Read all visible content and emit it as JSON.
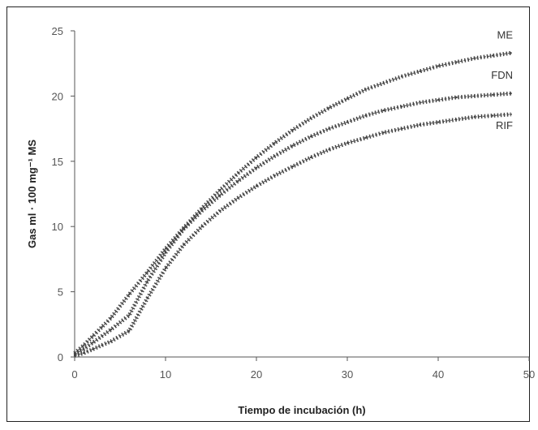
{
  "chart_data": {
    "type": "line",
    "title": "",
    "xlabel": "Tiempo de incubación (h)",
    "ylabel": "Gas ml · 100 mg⁻¹ MS",
    "xlim": [
      0,
      50
    ],
    "ylim": [
      0,
      25
    ],
    "x_ticks": [
      "0",
      "10",
      "20",
      "30",
      "40",
      "50"
    ],
    "y_ticks": [
      "0",
      "5",
      "10",
      "15",
      "20",
      "25"
    ],
    "grid": false,
    "legend": "inline-right",
    "series": [
      {
        "name": "ME",
        "x": [
          0,
          1,
          2,
          3,
          4,
          6,
          8,
          10,
          12,
          14,
          16,
          18,
          20,
          22,
          24,
          26,
          28,
          30,
          32,
          34,
          36,
          38,
          40,
          42,
          44,
          46,
          48
        ],
        "values": [
          0.3,
          0.9,
          1.6,
          2.3,
          3.0,
          4.8,
          6.5,
          8.3,
          9.9,
          11.4,
          12.8,
          14.1,
          15.3,
          16.4,
          17.4,
          18.3,
          19.1,
          19.8,
          20.5,
          21.0,
          21.5,
          21.9,
          22.3,
          22.6,
          22.9,
          23.1,
          23.3
        ]
      },
      {
        "name": "FDN",
        "x": [
          0,
          1,
          2,
          3,
          4,
          6,
          8,
          10,
          12,
          14,
          16,
          18,
          20,
          22,
          24,
          26,
          28,
          30,
          32,
          34,
          36,
          38,
          40,
          42,
          44,
          46,
          48
        ],
        "values": [
          0.2,
          0.6,
          1.1,
          1.6,
          2.1,
          3.2,
          5.8,
          8.0,
          9.8,
          11.2,
          12.4,
          13.5,
          14.5,
          15.4,
          16.2,
          16.9,
          17.5,
          18.0,
          18.5,
          18.9,
          19.2,
          19.5,
          19.7,
          19.9,
          20.0,
          20.1,
          20.2
        ]
      },
      {
        "name": "RIF",
        "x": [
          0,
          1,
          2,
          3,
          4,
          6,
          8,
          10,
          12,
          14,
          16,
          18,
          20,
          22,
          24,
          26,
          28,
          30,
          32,
          34,
          36,
          38,
          40,
          42,
          44,
          46,
          48
        ],
        "values": [
          0.1,
          0.3,
          0.6,
          0.9,
          1.2,
          2.0,
          4.5,
          6.8,
          8.6,
          10.0,
          11.2,
          12.2,
          13.1,
          13.9,
          14.6,
          15.3,
          15.9,
          16.4,
          16.8,
          17.2,
          17.5,
          17.8,
          18.0,
          18.2,
          18.4,
          18.5,
          18.6
        ]
      }
    ],
    "colors": {
      "line": "#444444",
      "axis": "#555555",
      "text": "#333333"
    }
  }
}
